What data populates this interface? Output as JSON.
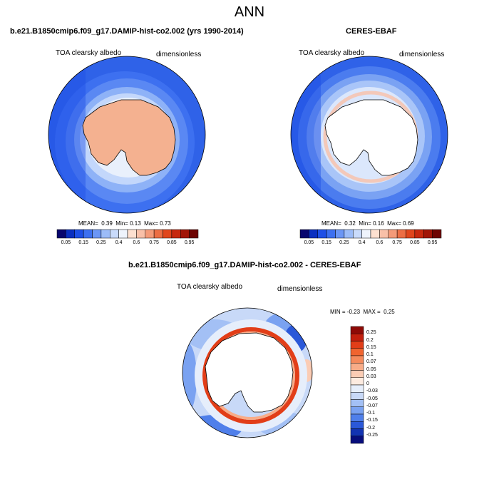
{
  "figure": {
    "title": "ANN",
    "colors": {
      "coastline": "#000000",
      "land_model": "#f4b190",
      "land_obs": "#ffffff"
    }
  },
  "panels": [
    {
      "title": "b.e21.B1850cmip6.f09_g17.DAMIP-hist-co2.002 (yrs 1990-2014)",
      "variable": "TOA clearsky albedo",
      "units": "dimensionless",
      "stats": {
        "mean_label": "MEAN=",
        "mean": "0.39",
        "min_label": "Min=",
        "min": "0.13",
        "max_label": "Max=",
        "max": "0.73"
      }
    },
    {
      "title": "CERES-EBAF",
      "variable": "TOA clearsky albedo",
      "units": "dimensionless",
      "stats": {
        "mean_label": "MEAN=",
        "mean": "0.32",
        "min_label": "Min=",
        "min": "0.16",
        "max_label": "Max=",
        "max": "0.69"
      }
    },
    {
      "title": "b.e21.B1850cmip6.f09_g17.DAMIP-hist-co2.002 - CERES-EBAF",
      "variable": "TOA clearsky albedo",
      "units": "dimensionless",
      "stats": {
        "min_label": "MIN =",
        "min": "-0.23",
        "max_label": "MAX =",
        "max": "0.25"
      }
    }
  ],
  "colorbar_abs": {
    "tick_labels": [
      "0.05",
      "0.15",
      "0.25",
      "0.4",
      "0.6",
      "0.75",
      "0.85",
      "0.95"
    ],
    "colors": [
      "#08066e",
      "#0a2fc0",
      "#1e4fe6",
      "#3d70f0",
      "#6b96f5",
      "#9cbcf8",
      "#c9dbfb",
      "#eef3fc",
      "#fde0d0",
      "#f9c0a8",
      "#f49a78",
      "#ec6e44",
      "#e0461c",
      "#c7290e",
      "#a11507",
      "#6e0503"
    ]
  },
  "colorbar_diff": {
    "tick_labels": [
      "0.25",
      "0.2",
      "0.15",
      "0.1",
      "0.07",
      "0.05",
      "0.03",
      "0",
      "-0.03",
      "-0.05",
      "-0.07",
      "-0.1",
      "-0.15",
      "-0.2",
      "-0.25"
    ],
    "colors": [
      "#8e0a06",
      "#c21f0d",
      "#e23e18",
      "#f0642f",
      "#f58a5c",
      "#f8ac88",
      "#fbccb4",
      "#fdebe0",
      "#e6eefb",
      "#c8d9f8",
      "#a3c0f5",
      "#7aa2f1",
      "#4f7fea",
      "#2b58d8",
      "#1233b2",
      "#070d7c"
    ]
  }
}
